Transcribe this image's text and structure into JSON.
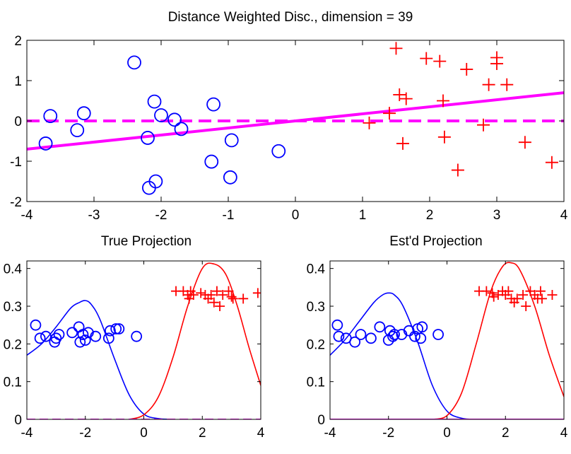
{
  "colors": {
    "class1": "#0000ff",
    "class2": "#ff0000",
    "direction": "#ff00ff",
    "axis": "#000000"
  },
  "chart_data": [
    {
      "type": "scatter",
      "title": "Distance Weighted Disc., dimension = 39",
      "xlim": [
        -4,
        4
      ],
      "ylim": [
        -2,
        2
      ],
      "xticks": [
        "-4",
        "-3",
        "-2",
        "-1",
        "0",
        "1",
        "2",
        "3",
        "4"
      ],
      "yticks": [
        "-2",
        "-1",
        "0",
        "1",
        "2"
      ],
      "grid": false,
      "series": [
        {
          "marker": "circle",
          "color": "#0000ff",
          "points": [
            [
              -3.72,
              -0.56
            ],
            [
              -3.65,
              0.12
            ],
            [
              -3.25,
              -0.23
            ],
            [
              -3.15,
              0.19
            ],
            [
              -2.4,
              1.45
            ],
            [
              -2.2,
              -0.42
            ],
            [
              -2.18,
              -1.66
            ],
            [
              -2.1,
              0.48
            ],
            [
              -2.08,
              -1.5
            ],
            [
              -2.0,
              0.14
            ],
            [
              -1.8,
              0.03
            ],
            [
              -1.7,
              -0.2
            ],
            [
              -1.22,
              0.41
            ],
            [
              -1.25,
              -1.01
            ],
            [
              -0.97,
              -1.4
            ],
            [
              -0.95,
              -0.48
            ],
            [
              -0.25,
              -0.75
            ]
          ]
        },
        {
          "marker": "plus",
          "color": "#ff0000",
          "points": [
            [
              1.1,
              -0.05
            ],
            [
              1.4,
              0.19
            ],
            [
              1.5,
              1.8
            ],
            [
              1.55,
              0.65
            ],
            [
              1.6,
              -0.56
            ],
            [
              1.65,
              0.55
            ],
            [
              1.95,
              1.55
            ],
            [
              2.15,
              1.48
            ],
            [
              2.2,
              0.5
            ],
            [
              2.22,
              -0.4
            ],
            [
              2.42,
              -1.22
            ],
            [
              2.55,
              1.28
            ],
            [
              2.8,
              -0.1
            ],
            [
              2.88,
              0.9
            ],
            [
              3.0,
              1.42
            ],
            [
              3.0,
              1.57
            ],
            [
              3.15,
              0.9
            ],
            [
              3.42,
              -0.53
            ],
            [
              3.82,
              -1.03
            ]
          ]
        }
      ],
      "lines": [
        {
          "style": "solid",
          "color": "#ff00ff",
          "x": [
            -4,
            4
          ],
          "y": [
            -0.7,
            0.7
          ]
        },
        {
          "style": "dashed",
          "color": "#ff00ff",
          "x": [
            -4,
            4
          ],
          "y": [
            0,
            0
          ]
        }
      ]
    },
    {
      "type": "line",
      "title": "True Projection",
      "xlim": [
        -4,
        4
      ],
      "ylim": [
        0,
        0.42
      ],
      "xticks": [
        "-4",
        "-2",
        "0",
        "2",
        "4"
      ],
      "yticks": [
        "0",
        "0.1",
        "0.2",
        "0.3",
        "0.4"
      ],
      "grid": false,
      "curves": [
        {
          "color": "#0000ff",
          "x": [
            -4.0,
            -3.5,
            -3.0,
            -2.5,
            -2.2,
            -2.0,
            -1.8,
            -1.5,
            -1.0,
            -0.5,
            0.0,
            0.5,
            1.0
          ],
          "y": [
            0.17,
            0.2,
            0.245,
            0.295,
            0.31,
            0.315,
            0.305,
            0.265,
            0.16,
            0.065,
            0.014,
            0.002,
            0.0
          ]
        },
        {
          "color": "#ff0000",
          "x": [
            -0.5,
            0.0,
            0.5,
            1.0,
            1.5,
            2.0,
            2.4,
            2.8,
            3.2,
            3.6,
            4.0
          ],
          "y": [
            0.0,
            0.012,
            0.06,
            0.165,
            0.3,
            0.4,
            0.412,
            0.385,
            0.3,
            0.19,
            0.09
          ]
        },
        {
          "color": "#ff00ff",
          "style": "dashed",
          "x": [
            -4,
            4
          ],
          "y": [
            0,
            0
          ]
        }
      ],
      "series": [
        {
          "marker": "circle",
          "color": "#0000ff",
          "points": [
            [
              -3.7,
              0.25
            ],
            [
              -3.55,
              0.215
            ],
            [
              -3.35,
              0.22
            ],
            [
              -3.05,
              0.205
            ],
            [
              -3.0,
              0.215
            ],
            [
              -2.9,
              0.225
            ],
            [
              -2.45,
              0.23
            ],
            [
              -2.22,
              0.245
            ],
            [
              -2.18,
              0.205
            ],
            [
              -2.08,
              0.225
            ],
            [
              -2.0,
              0.21
            ],
            [
              -1.9,
              0.23
            ],
            [
              -1.65,
              0.22
            ],
            [
              -1.2,
              0.215
            ],
            [
              -1.15,
              0.235
            ],
            [
              -0.95,
              0.24
            ],
            [
              -0.85,
              0.24
            ],
            [
              -0.25,
              0.22
            ]
          ]
        },
        {
          "marker": "plus",
          "color": "#ff0000",
          "points": [
            [
              1.1,
              0.34
            ],
            [
              1.35,
              0.34
            ],
            [
              1.5,
              0.33
            ],
            [
              1.55,
              0.32
            ],
            [
              1.6,
              0.34
            ],
            [
              1.7,
              0.33
            ],
            [
              1.95,
              0.335
            ],
            [
              2.1,
              0.33
            ],
            [
              2.2,
              0.32
            ],
            [
              2.3,
              0.33
            ],
            [
              2.4,
              0.31
            ],
            [
              2.5,
              0.34
            ],
            [
              2.6,
              0.3
            ],
            [
              2.7,
              0.33
            ],
            [
              2.9,
              0.34
            ],
            [
              3.0,
              0.325
            ],
            [
              3.05,
              0.32
            ],
            [
              3.4,
              0.32
            ],
            [
              3.9,
              0.335
            ]
          ]
        }
      ]
    },
    {
      "type": "line",
      "title": "Est'd Projection",
      "xlim": [
        -4,
        4
      ],
      "ylim": [
        0,
        0.42
      ],
      "xticks": [
        "-4",
        "-2",
        "0",
        "2",
        "4"
      ],
      "yticks": [
        "0",
        "0.1",
        "0.2",
        "0.3",
        "0.4"
      ],
      "grid": false,
      "curves": [
        {
          "color": "#0000ff",
          "x": [
            -4.0,
            -3.5,
            -3.0,
            -2.5,
            -2.2,
            -2.0,
            -1.8,
            -1.5,
            -1.0,
            -0.5,
            0.0,
            0.5,
            1.0
          ],
          "y": [
            0.17,
            0.21,
            0.26,
            0.31,
            0.33,
            0.335,
            0.33,
            0.3,
            0.205,
            0.09,
            0.022,
            0.003,
            0.0
          ]
        },
        {
          "color": "#ff0000",
          "x": [
            -0.5,
            0.0,
            0.5,
            1.0,
            1.5,
            1.9,
            2.2,
            2.5,
            3.0,
            3.5,
            4.0
          ],
          "y": [
            0.0,
            0.01,
            0.07,
            0.2,
            0.34,
            0.405,
            0.415,
            0.395,
            0.3,
            0.17,
            0.06
          ]
        },
        {
          "color": "#ff00ff",
          "style": "solid",
          "x": [
            -4,
            4
          ],
          "y": [
            0,
            0
          ]
        }
      ],
      "series": [
        {
          "marker": "circle",
          "color": "#0000ff",
          "points": [
            [
              -3.75,
              0.25
            ],
            [
              -3.7,
              0.22
            ],
            [
              -3.45,
              0.215
            ],
            [
              -3.15,
              0.205
            ],
            [
              -2.95,
              0.225
            ],
            [
              -2.6,
              0.215
            ],
            [
              -2.3,
              0.245
            ],
            [
              -2.0,
              0.21
            ],
            [
              -1.95,
              0.235
            ],
            [
              -1.85,
              0.22
            ],
            [
              -1.8,
              0.225
            ],
            [
              -1.55,
              0.225
            ],
            [
              -1.3,
              0.235
            ],
            [
              -1.1,
              0.22
            ],
            [
              -1.0,
              0.24
            ],
            [
              -0.9,
              0.215
            ],
            [
              -0.85,
              0.245
            ],
            [
              -0.3,
              0.225
            ]
          ]
        },
        {
          "marker": "plus",
          "color": "#ff0000",
          "points": [
            [
              1.1,
              0.34
            ],
            [
              1.35,
              0.34
            ],
            [
              1.55,
              0.335
            ],
            [
              1.6,
              0.325
            ],
            [
              1.75,
              0.33
            ],
            [
              1.9,
              0.34
            ],
            [
              2.0,
              0.33
            ],
            [
              2.1,
              0.34
            ],
            [
              2.2,
              0.32
            ],
            [
              2.3,
              0.31
            ],
            [
              2.4,
              0.32
            ],
            [
              2.6,
              0.33
            ],
            [
              2.7,
              0.3
            ],
            [
              2.85,
              0.34
            ],
            [
              3.0,
              0.33
            ],
            [
              3.1,
              0.32
            ],
            [
              3.2,
              0.34
            ],
            [
              3.25,
              0.32
            ],
            [
              3.6,
              0.33
            ]
          ]
        }
      ]
    }
  ]
}
